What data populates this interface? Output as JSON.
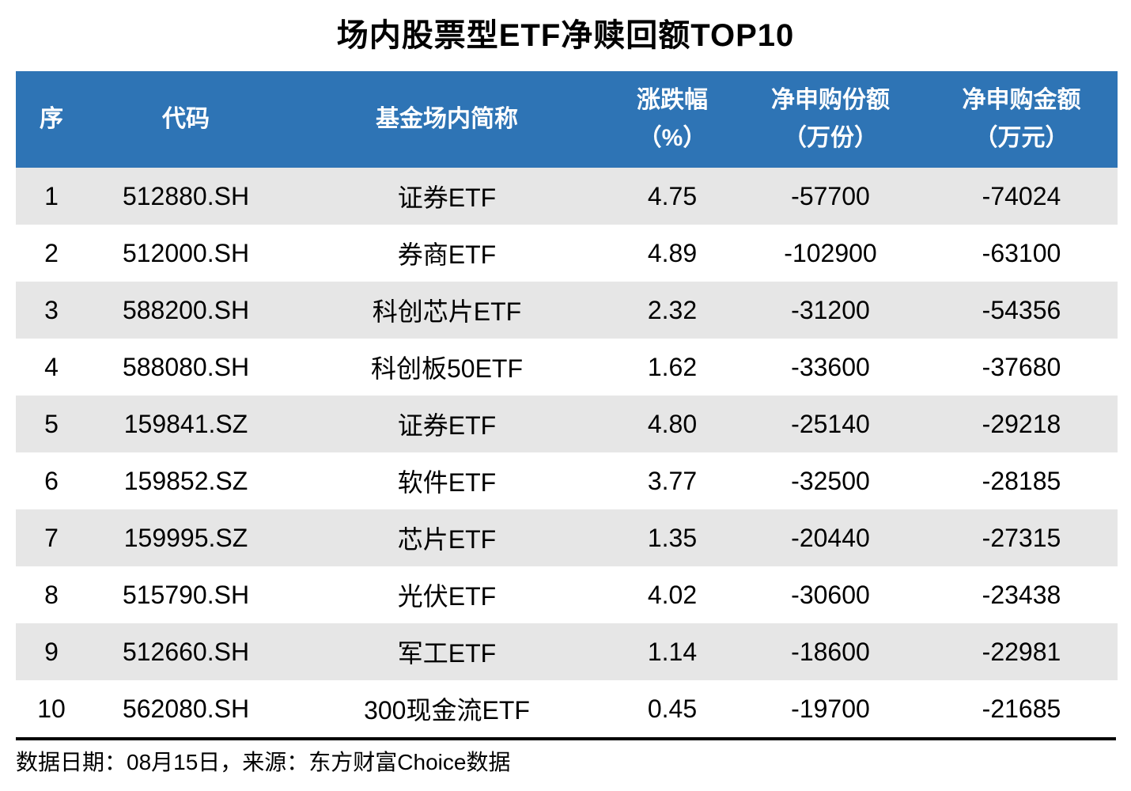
{
  "title": "场内股票型ETF净赎回额TOP10",
  "chart_data": {
    "type": "table",
    "title": "场内股票型ETF净赎回额TOP10",
    "columns": [
      {
        "label": "序",
        "unit": ""
      },
      {
        "label": "代码",
        "unit": ""
      },
      {
        "label": "基金场内简称",
        "unit": ""
      },
      {
        "label": "涨跌幅",
        "unit": "（%）"
      },
      {
        "label": "净申购份额",
        "unit": "（万份）"
      },
      {
        "label": "净申购金额",
        "unit": "（万元）"
      }
    ],
    "rows": [
      [
        "1",
        "512880.SH",
        "证券ETF",
        "4.75",
        "-57700",
        "-74024"
      ],
      [
        "2",
        "512000.SH",
        "券商ETF",
        "4.89",
        "-102900",
        "-63100"
      ],
      [
        "3",
        "588200.SH",
        "科创芯片ETF",
        "2.32",
        "-31200",
        "-54356"
      ],
      [
        "4",
        "588080.SH",
        "科创板50ETF",
        "1.62",
        "-33600",
        "-37680"
      ],
      [
        "5",
        "159841.SZ",
        "证券ETF",
        "4.80",
        "-25140",
        "-29218"
      ],
      [
        "6",
        "159852.SZ",
        "软件ETF",
        "3.77",
        "-32500",
        "-28185"
      ],
      [
        "7",
        "159995.SZ",
        "芯片ETF",
        "1.35",
        "-20440",
        "-27315"
      ],
      [
        "8",
        "515790.SH",
        "光伏ETF",
        "4.02",
        "-30600",
        "-23438"
      ],
      [
        "9",
        "512660.SH",
        "军工ETF",
        "1.14",
        "-18600",
        "-22981"
      ],
      [
        "10",
        "562080.SH",
        "300现金流ETF",
        "0.45",
        "-19700",
        "-21685"
      ]
    ],
    "footer": "数据日期：08月15日，来源：东方财富Choice数据"
  },
  "colors": {
    "header_bg": "#2E74B5",
    "header_text": "#FFFFFF",
    "row_alt_bg": "#E6E6E6",
    "body_text": "#000000",
    "divider": "#000000"
  }
}
